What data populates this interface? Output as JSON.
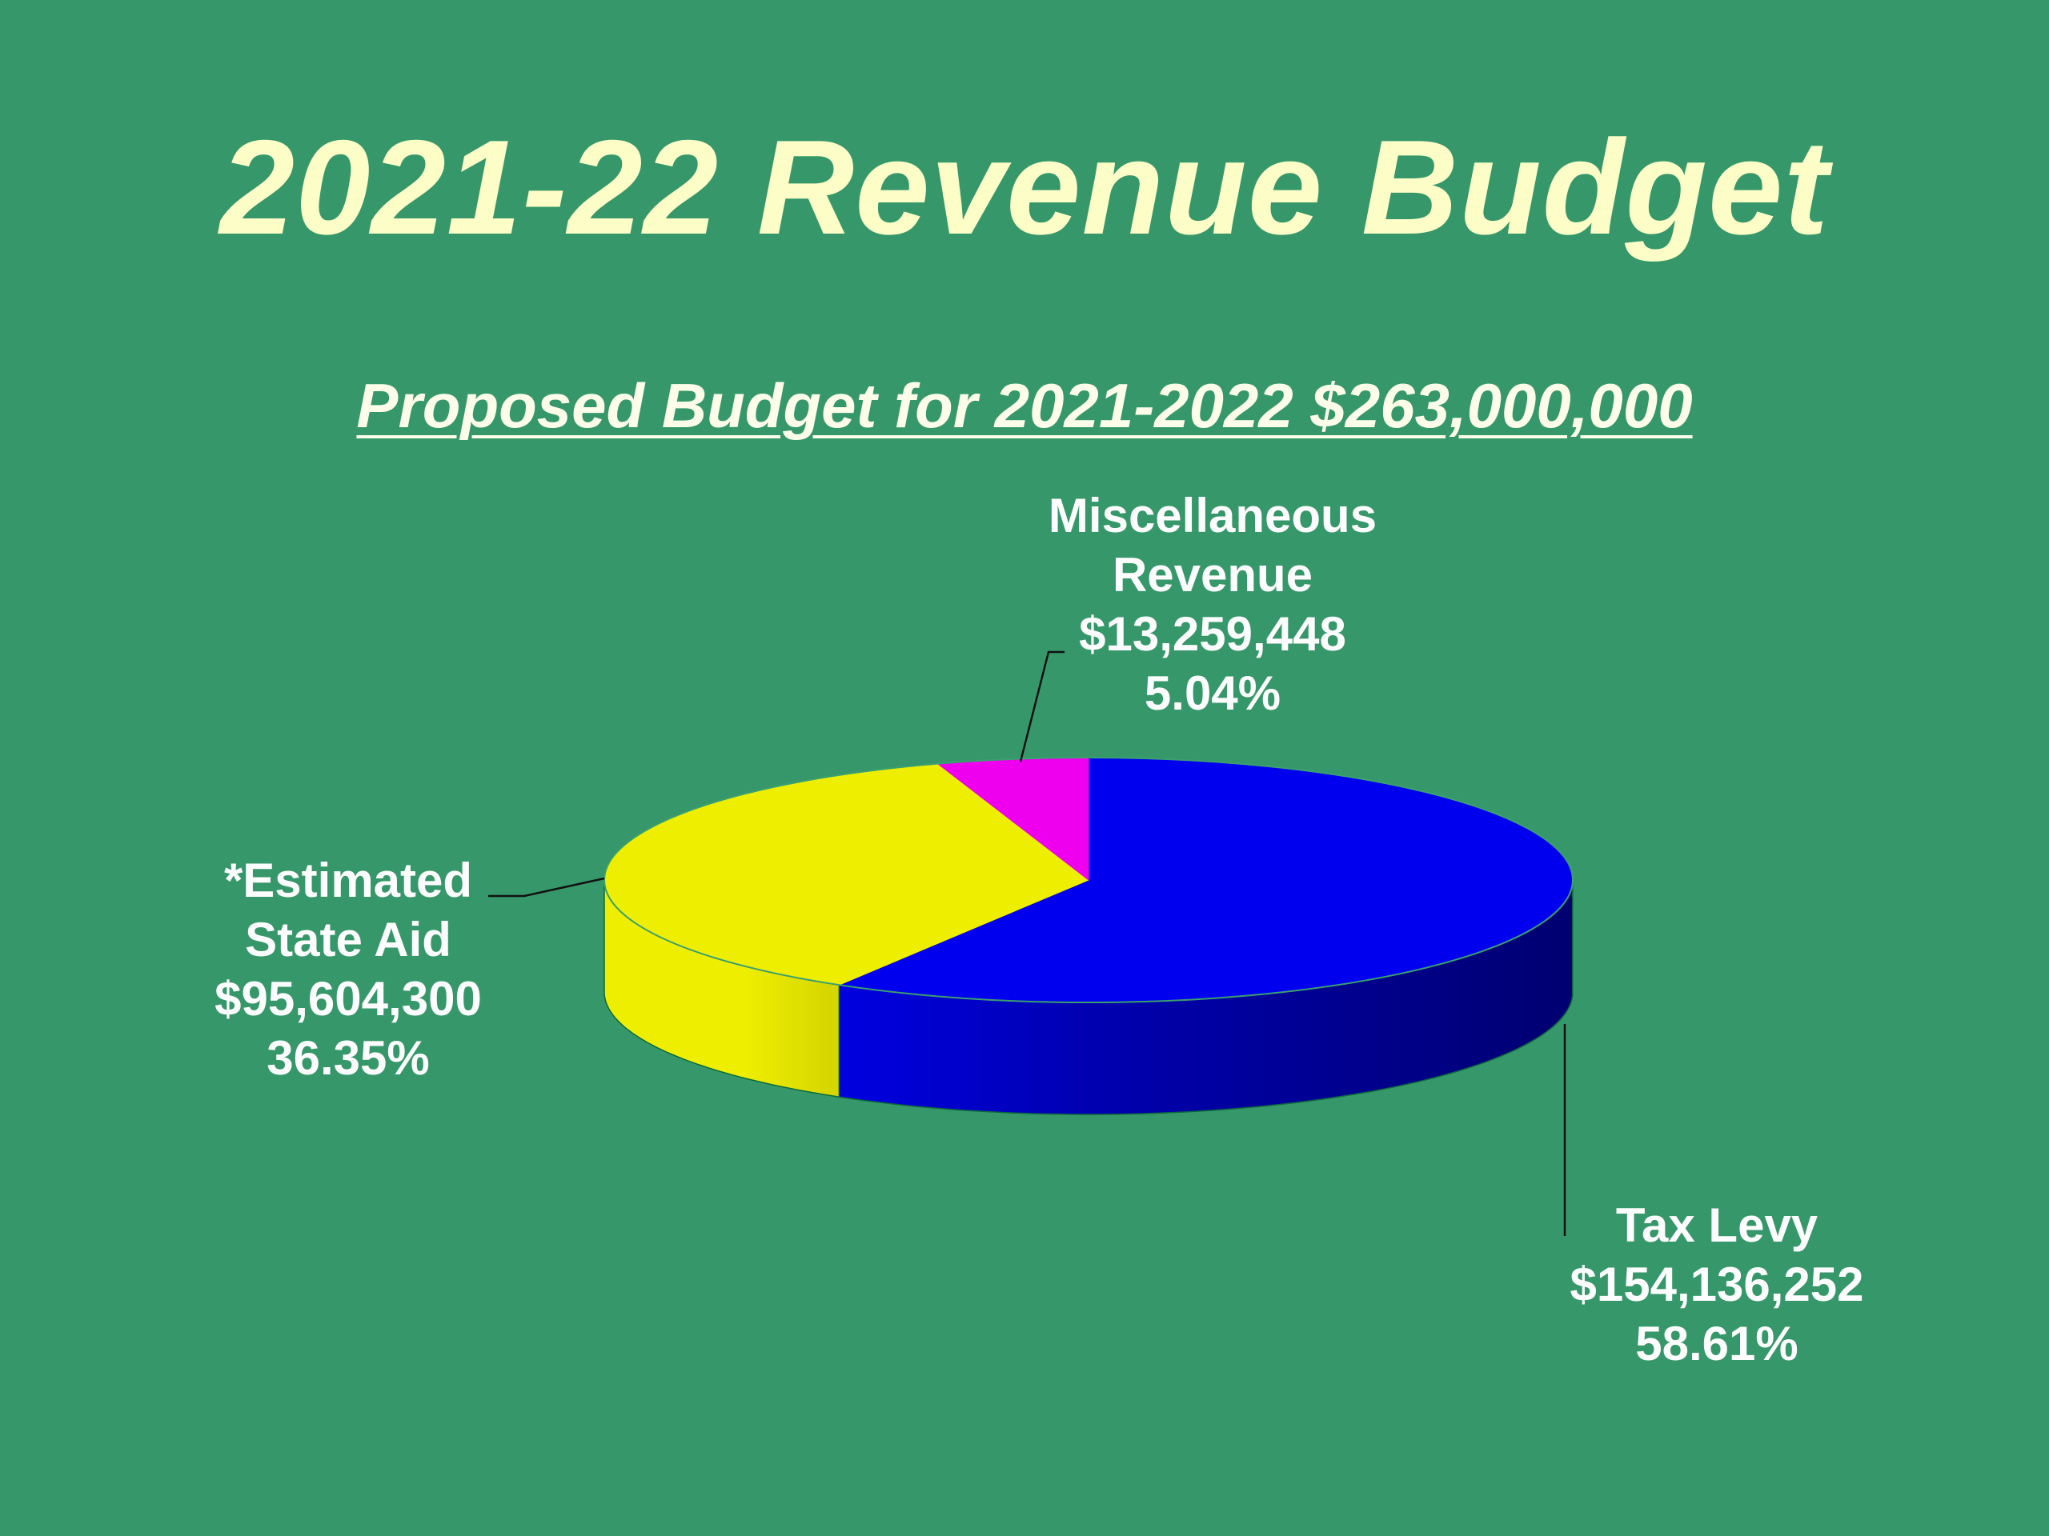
{
  "title": "2021-22 Revenue Budget",
  "subtitle": "Proposed Budget for 2021-2022 $263,000,000",
  "chart_data": {
    "type": "pie",
    "style": "3d",
    "slices": [
      {
        "line1": "Tax Levy",
        "line2": "",
        "amount": "$154,136,252",
        "percent_label": "58.61%",
        "value": 58.61,
        "color": "#0000ee",
        "side_color": "#000099"
      },
      {
        "line1": "*Estimated",
        "line2": "State Aid",
        "amount": "$95,604,300",
        "percent_label": "36.35%",
        "value": 36.35,
        "color": "#eeee00",
        "side_color": "#d8d800"
      },
      {
        "line1": "Miscellaneous",
        "line2": "Revenue",
        "amount": "$13,259,448",
        "percent_label": "5.04%",
        "value": 5.04,
        "color": "#ee00ee",
        "side_color": "#990099"
      }
    ],
    "legend": "none"
  }
}
